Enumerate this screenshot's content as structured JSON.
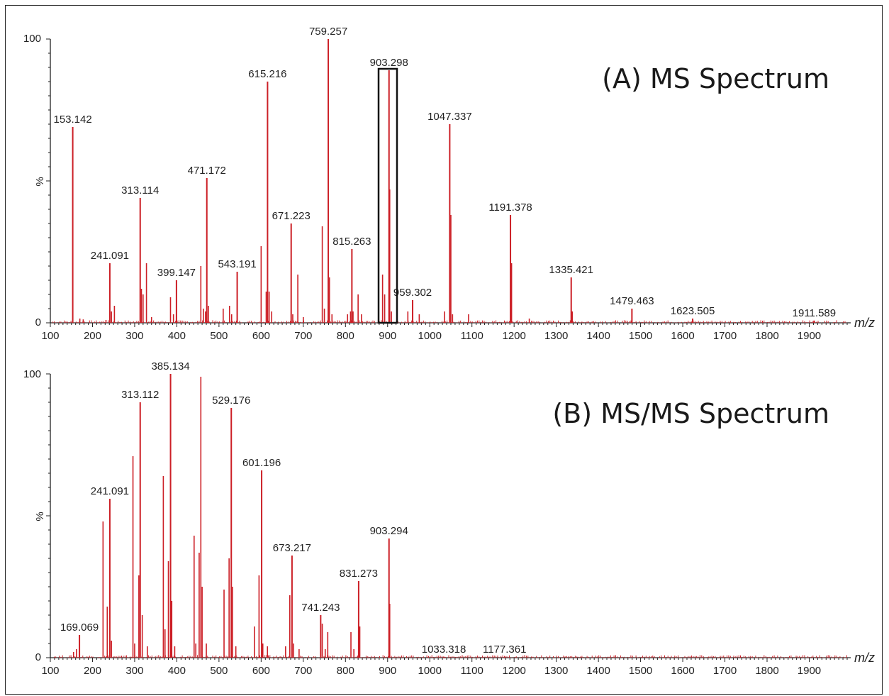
{
  "chart_data": [
    {
      "type": "bar",
      "title": "(A) MS Spectrum",
      "xlabel": "m/z",
      "ylabel": "%",
      "xlim": [
        100,
        1990
      ],
      "ylim": [
        0,
        100
      ],
      "xticks": [
        "100",
        "200",
        "300",
        "400",
        "500",
        "600",
        "700",
        "800",
        "900",
        "1000",
        "1100",
        "1200",
        "1300",
        "1400",
        "1500",
        "1600",
        "1700",
        "1800",
        "1900"
      ],
      "yticks": [
        "0",
        "100"
      ],
      "highlight": {
        "x_range": [
          880,
          925
        ],
        "label": "903.298"
      },
      "color": "#cc1f26",
      "labeled_peaks": [
        {
          "x": 153.142,
          "y": 69,
          "label": "153.142"
        },
        {
          "x": 241.091,
          "y": 21,
          "label": "241.091"
        },
        {
          "x": 313.114,
          "y": 44,
          "label": "313.114"
        },
        {
          "x": 399.147,
          "y": 15,
          "label": "399.147"
        },
        {
          "x": 471.172,
          "y": 51,
          "label": "471.172"
        },
        {
          "x": 543.191,
          "y": 18,
          "label": "543.191"
        },
        {
          "x": 615.216,
          "y": 85,
          "label": "615.216"
        },
        {
          "x": 671.223,
          "y": 35,
          "label": "671.223"
        },
        {
          "x": 759.257,
          "y": 100,
          "label": "759.257"
        },
        {
          "x": 815.263,
          "y": 26,
          "label": "815.263"
        },
        {
          "x": 903.298,
          "y": 89,
          "label": "903.298"
        },
        {
          "x": 959.302,
          "y": 8,
          "label": "959.302"
        },
        {
          "x": 1047.337,
          "y": 70,
          "label": "1047.337"
        },
        {
          "x": 1191.378,
          "y": 38,
          "label": "1191.378"
        },
        {
          "x": 1335.421,
          "y": 16,
          "label": "1335.421"
        },
        {
          "x": 1479.463,
          "y": 5,
          "label": "1479.463"
        },
        {
          "x": 1623.505,
          "y": 1.5,
          "label": "1623.505"
        },
        {
          "x": 1911.589,
          "y": 0.8,
          "label": "1911.589"
        }
      ],
      "minor_peaks": [
        {
          "x": 170,
          "y": 1.5
        },
        {
          "x": 178,
          "y": 1.2
        },
        {
          "x": 232,
          "y": 1
        },
        {
          "x": 245,
          "y": 4
        },
        {
          "x": 252,
          "y": 6
        },
        {
          "x": 316,
          "y": 12
        },
        {
          "x": 320,
          "y": 10
        },
        {
          "x": 328,
          "y": 21
        },
        {
          "x": 340,
          "y": 2
        },
        {
          "x": 385,
          "y": 9
        },
        {
          "x": 392,
          "y": 3
        },
        {
          "x": 457,
          "y": 20
        },
        {
          "x": 463,
          "y": 5
        },
        {
          "x": 468,
          "y": 4
        },
        {
          "x": 475,
          "y": 6
        },
        {
          "x": 510,
          "y": 5
        },
        {
          "x": 525,
          "y": 6
        },
        {
          "x": 530,
          "y": 3
        },
        {
          "x": 600,
          "y": 27
        },
        {
          "x": 612,
          "y": 11
        },
        {
          "x": 619,
          "y": 11
        },
        {
          "x": 625,
          "y": 4
        },
        {
          "x": 675,
          "y": 3
        },
        {
          "x": 687,
          "y": 17
        },
        {
          "x": 700,
          "y": 2
        },
        {
          "x": 745,
          "y": 34
        },
        {
          "x": 750,
          "y": 5
        },
        {
          "x": 762,
          "y": 16
        },
        {
          "x": 768,
          "y": 3
        },
        {
          "x": 805,
          "y": 3
        },
        {
          "x": 812,
          "y": 4
        },
        {
          "x": 818,
          "y": 4
        },
        {
          "x": 830,
          "y": 10
        },
        {
          "x": 838,
          "y": 3
        },
        {
          "x": 888,
          "y": 17
        },
        {
          "x": 893,
          "y": 10
        },
        {
          "x": 905,
          "y": 47
        },
        {
          "x": 909,
          "y": 4
        },
        {
          "x": 948,
          "y": 4
        },
        {
          "x": 975,
          "y": 3
        },
        {
          "x": 1035,
          "y": 4
        },
        {
          "x": 1050,
          "y": 38
        },
        {
          "x": 1054,
          "y": 3
        },
        {
          "x": 1092,
          "y": 3
        },
        {
          "x": 1194,
          "y": 21
        },
        {
          "x": 1236,
          "y": 1.5
        },
        {
          "x": 1338,
          "y": 4
        }
      ]
    },
    {
      "type": "bar",
      "title": "(B) MS/MS Spectrum",
      "xlabel": "m/z",
      "ylabel": "%",
      "xlim": [
        100,
        1990
      ],
      "ylim": [
        0,
        100
      ],
      "xticks": [
        "100",
        "200",
        "300",
        "400",
        "500",
        "600",
        "700",
        "800",
        "900",
        "1000",
        "1100",
        "1200",
        "1300",
        "1400",
        "1500",
        "1600",
        "1700",
        "1800",
        "1900"
      ],
      "yticks": [
        "0",
        "100"
      ],
      "color": "#cc1f26",
      "labeled_peaks": [
        {
          "x": 169.069,
          "y": 8,
          "label": "169.069"
        },
        {
          "x": 241.091,
          "y": 56,
          "label": "241.091"
        },
        {
          "x": 313.112,
          "y": 90,
          "label": "313.112"
        },
        {
          "x": 385.134,
          "y": 100,
          "label": "385.134"
        },
        {
          "x": 529.176,
          "y": 88,
          "label": "529.176"
        },
        {
          "x": 601.196,
          "y": 66,
          "label": "601.196"
        },
        {
          "x": 673.217,
          "y": 36,
          "label": "673.217"
        },
        {
          "x": 741.243,
          "y": 15,
          "label": "741.243"
        },
        {
          "x": 831.273,
          "y": 27,
          "label": "831.273"
        },
        {
          "x": 903.294,
          "y": 42,
          "label": "903.294"
        },
        {
          "x": 1033.318,
          "y": 0.3,
          "label": "1033.318"
        },
        {
          "x": 1177.361,
          "y": 0.3,
          "label": "1177.361"
        }
      ],
      "minor_peaks": [
        {
          "x": 155,
          "y": 2
        },
        {
          "x": 162,
          "y": 3
        },
        {
          "x": 225,
          "y": 48
        },
        {
          "x": 235,
          "y": 18
        },
        {
          "x": 245,
          "y": 6
        },
        {
          "x": 296,
          "y": 71
        },
        {
          "x": 300,
          "y": 5
        },
        {
          "x": 310,
          "y": 29
        },
        {
          "x": 318,
          "y": 15
        },
        {
          "x": 330,
          "y": 4
        },
        {
          "x": 368,
          "y": 64
        },
        {
          "x": 372,
          "y": 10
        },
        {
          "x": 380,
          "y": 34
        },
        {
          "x": 388,
          "y": 20
        },
        {
          "x": 395,
          "y": 4
        },
        {
          "x": 441,
          "y": 43
        },
        {
          "x": 445,
          "y": 5
        },
        {
          "x": 453,
          "y": 37
        },
        {
          "x": 457,
          "y": 99
        },
        {
          "x": 460,
          "y": 25
        },
        {
          "x": 470,
          "y": 5
        },
        {
          "x": 512,
          "y": 24
        },
        {
          "x": 524,
          "y": 35
        },
        {
          "x": 532,
          "y": 25
        },
        {
          "x": 540,
          "y": 4
        },
        {
          "x": 584,
          "y": 11
        },
        {
          "x": 595,
          "y": 29
        },
        {
          "x": 604,
          "y": 5
        },
        {
          "x": 615,
          "y": 4
        },
        {
          "x": 658,
          "y": 4
        },
        {
          "x": 668,
          "y": 22
        },
        {
          "x": 677,
          "y": 5
        },
        {
          "x": 690,
          "y": 3
        },
        {
          "x": 745,
          "y": 12
        },
        {
          "x": 752,
          "y": 3
        },
        {
          "x": 758,
          "y": 9
        },
        {
          "x": 813,
          "y": 9
        },
        {
          "x": 820,
          "y": 3
        },
        {
          "x": 834,
          "y": 11
        },
        {
          "x": 905,
          "y": 19
        }
      ]
    }
  ]
}
